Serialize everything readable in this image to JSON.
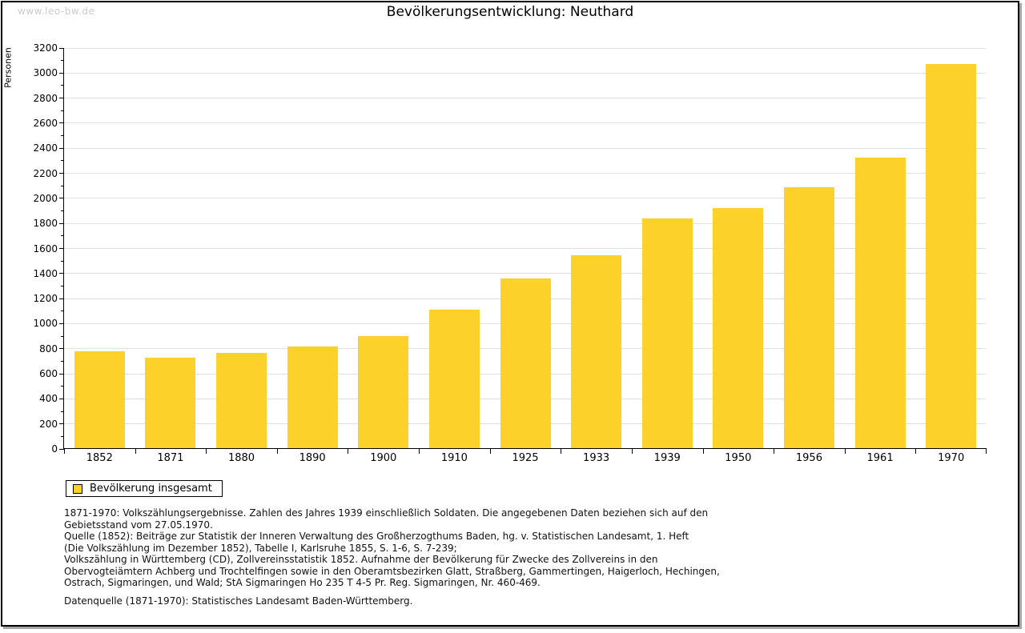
{
  "page": {
    "watermark": "www.leo-bw.de",
    "title": "Bevölkerungsentwicklung: Neuthard"
  },
  "chart_data": {
    "type": "bar",
    "title": "Bevölkerungsentwicklung: Neuthard",
    "xlabel": "",
    "ylabel": "Personen",
    "ylim": [
      0,
      3200
    ],
    "ytick_step": 200,
    "yminor_step": 100,
    "grid": true,
    "legend_position": "bottom-left",
    "series_name": "Bevölkerung insgesamt",
    "categories": [
      "1852",
      "1871",
      "1880",
      "1890",
      "1900",
      "1910",
      "1925",
      "1933",
      "1939",
      "1950",
      "1956",
      "1961",
      "1970"
    ],
    "values": [
      775,
      720,
      760,
      810,
      895,
      1105,
      1355,
      1540,
      1835,
      1915,
      2080,
      2320,
      3065
    ]
  },
  "legend": {
    "label": "Bevölkerung insgesamt"
  },
  "footer": {
    "lines": [
      "1871-1970: Volkszählungsergebnisse. Zahlen des Jahres 1939 einschließlich Soldaten. Die angegebenen Daten beziehen sich auf den",
      "Gebietsstand vom 27.05.1970.",
      "Quelle (1852): Beiträge zur Statistik der Inneren Verwaltung des Großherzogthums Baden, hg. v. Statistischen Landesamt, 1. Heft",
      "(Die Volkszählung im Dezember 1852), Tabelle I, Karlsruhe 1855, S. 1-6, S. 7-239;",
      "Volkszählung in Württemberg (CD), Zollvereinsstatistik 1852. Aufnahme der Bevölkerung für Zwecke des Zollvereins in den",
      "Obervogteiämtern Achberg und Trochtelfingen sowie in den Oberamtsbezirken Glatt, Straßberg, Gammertingen, Haigerloch, Hechingen,",
      "Ostrach, Sigmaringen, und Wald; StA Sigmaringen Ho 235 T 4-5 Pr. Reg. Sigmaringen, Nr. 460-469."
    ],
    "datasource": "Datenquelle (1871-1970): Statistisches Landesamt Baden-Württemberg."
  },
  "colors": {
    "bar": "#FBD12A",
    "grid": "#E0E0E0",
    "axis": "#000000",
    "watermark": "#CCCCCC",
    "frame_shadow": "#A6A6A6"
  }
}
